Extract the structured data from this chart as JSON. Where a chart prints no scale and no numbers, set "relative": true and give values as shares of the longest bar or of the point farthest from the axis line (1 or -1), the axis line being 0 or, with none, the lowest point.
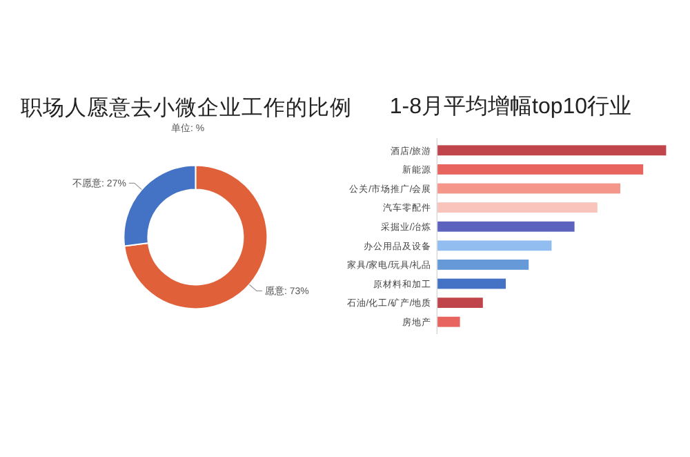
{
  "chart_data": [
    {
      "type": "donut",
      "title": "职场人愿意去小微企业工作的比例",
      "subtitle": "单位: %",
      "categories": [
        "愿意",
        "不愿意"
      ],
      "values": [
        73,
        27
      ],
      "value_labels": [
        "73%",
        "27%"
      ],
      "colors": [
        "#e0603a",
        "#4472c4"
      ]
    },
    {
      "type": "bar",
      "orientation": "horizontal",
      "relative": true,
      "title": "1-8月平均增幅top10行业",
      "categories": [
        "酒店/旅游",
        "新能源",
        "公关/市场推广/会展",
        "汽车零配件",
        "采掘业/冶炼",
        "办公用品及设备",
        "家具/家电/玩具/礼品",
        "原材料和加工",
        "石油/化工/矿产/地质",
        "房地产"
      ],
      "values": [
        1,
        0.9,
        0.8,
        0.7,
        0.6,
        0.5,
        0.4,
        0.3,
        0.2,
        0.1
      ],
      "colors": [
        "#c0454a",
        "#e8645f",
        "#f4968a",
        "#f8c4bc",
        "#5b63be",
        "#92bdf0",
        "#6699d8",
        "#4472c4",
        "#c0454a",
        "#e8645f"
      ]
    }
  ]
}
